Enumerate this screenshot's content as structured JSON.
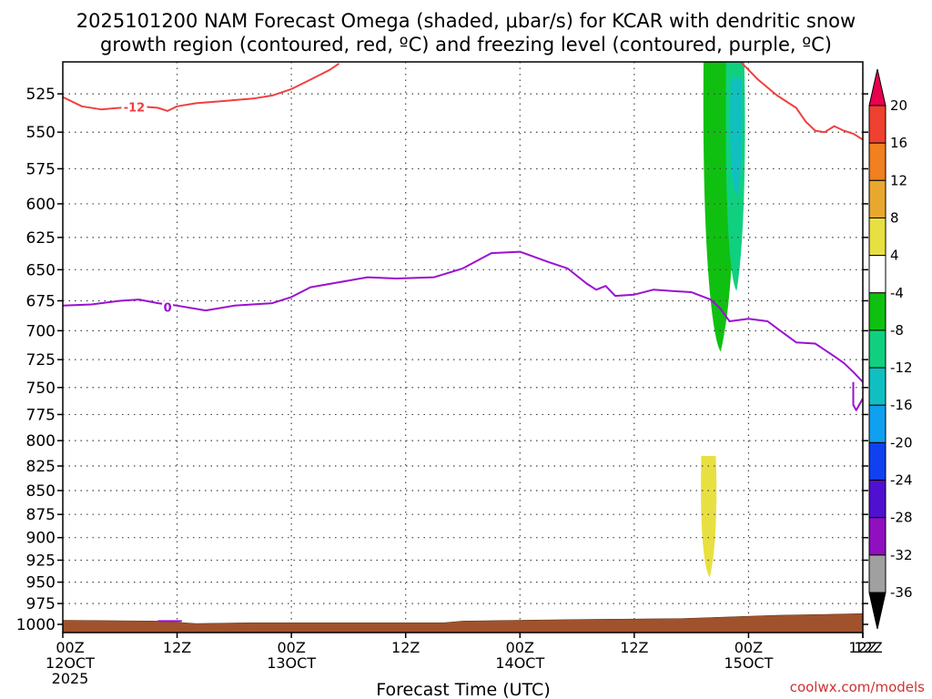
{
  "title": {
    "line1": "2025101200 NAM Forecast Omega (shaded, μbar/s) for KCAR with dendritic snow",
    "line2": "growth region (contoured, red, ºC) and freezing level (contoured, purple, ºC)"
  },
  "credit": "coolwx.com/models",
  "chart_data": {
    "type": "time-height",
    "xlabel": "Forecast Time (UTC)",
    "x_ticks": [
      {
        "hours": 0,
        "line1": "00Z",
        "line2": "12OCT",
        "line3": "2025"
      },
      {
        "hours": 12,
        "line1": "12Z",
        "line2": "",
        "line3": ""
      },
      {
        "hours": 24,
        "line1": "00Z",
        "line2": "13OCT",
        "line3": ""
      },
      {
        "hours": 36,
        "line1": "12Z",
        "line2": "",
        "line3": ""
      },
      {
        "hours": 48,
        "line1": "00Z",
        "line2": "14OCT",
        "line3": ""
      },
      {
        "hours": 60,
        "line1": "12Z",
        "line2": "",
        "line3": ""
      },
      {
        "hours": 72,
        "line1": "00Z",
        "line2": "15OCT",
        "line3": ""
      },
      {
        "hours": 84,
        "line1": "12Z",
        "line2": "",
        "line3": ""
      }
    ],
    "xlim_hours": [
      0,
      84
    ],
    "y_ticks": [
      525,
      550,
      575,
      600,
      625,
      650,
      675,
      700,
      725,
      750,
      775,
      800,
      825,
      850,
      875,
      900,
      925,
      950,
      975,
      1000
    ],
    "ylim_hpa": [
      505,
      1010
    ],
    "y_scale": "log-pressure",
    "grid": true,
    "colorbar": {
      "levels": [
        20,
        16,
        12,
        8,
        4,
        -4,
        -8,
        -12,
        -16,
        -20,
        -24,
        -28,
        -32,
        -36
      ],
      "colors": [
        "#e8004f",
        "#f04030",
        "#f08020",
        "#e8a830",
        "#e8e040",
        "#ffffff",
        "#10c010",
        "#10d080",
        "#10c0c0",
        "#10a0f0",
        "#1040f0",
        "#5010d0",
        "#9010c0",
        "#a0a0a0",
        "#000000"
      ]
    },
    "contours": [
      {
        "name": "-12",
        "color": "#f04040",
        "label": "-12",
        "label_at": [
          7.5,
          534
        ],
        "points": [
          [
            0,
            527
          ],
          [
            2,
            533
          ],
          [
            4,
            535
          ],
          [
            6,
            534
          ],
          [
            8,
            533
          ],
          [
            10,
            534
          ],
          [
            11,
            536
          ],
          [
            12,
            533
          ],
          [
            14,
            531
          ],
          [
            16,
            530
          ],
          [
            18,
            529
          ],
          [
            20,
            528
          ],
          [
            22,
            526
          ],
          [
            24,
            522
          ],
          [
            26,
            516
          ],
          [
            28,
            510
          ],
          [
            29,
            506
          ]
        ]
      },
      {
        "name": "-12-east",
        "color": "#f04040",
        "label": "",
        "label_at": null,
        "points": [
          [
            71,
            504
          ],
          [
            73,
            516
          ],
          [
            75,
            526
          ],
          [
            77,
            534
          ],
          [
            78,
            543
          ],
          [
            79,
            549
          ],
          [
            80,
            550
          ],
          [
            81,
            546
          ],
          [
            82,
            549
          ],
          [
            83,
            551
          ],
          [
            84,
            555
          ]
        ]
      },
      {
        "name": "0",
        "color": "#9b10d0",
        "label": "0",
        "label_at": [
          11,
          681
        ],
        "points": [
          [
            0,
            679
          ],
          [
            3,
            678
          ],
          [
            6,
            675
          ],
          [
            8,
            674
          ],
          [
            10,
            677
          ],
          [
            12,
            679
          ],
          [
            15,
            683
          ],
          [
            18,
            679
          ],
          [
            22,
            677
          ],
          [
            24,
            672
          ],
          [
            26,
            664
          ],
          [
            29,
            660
          ],
          [
            32,
            656
          ],
          [
            35,
            657
          ],
          [
            39,
            656
          ],
          [
            42,
            649
          ],
          [
            45,
            637
          ],
          [
            48,
            636
          ],
          [
            51,
            644
          ],
          [
            53,
            649
          ],
          [
            55,
            661
          ],
          [
            56,
            666
          ],
          [
            57,
            663
          ],
          [
            58,
            671
          ],
          [
            60,
            670
          ],
          [
            62,
            666
          ],
          [
            64,
            667
          ],
          [
            66,
            668
          ],
          [
            68,
            674
          ],
          [
            69,
            681
          ],
          [
            70,
            692
          ],
          [
            72,
            690
          ],
          [
            74,
            692
          ],
          [
            75,
            698
          ],
          [
            77,
            710
          ],
          [
            79,
            711
          ],
          [
            81,
            722
          ],
          [
            82,
            728
          ],
          [
            83,
            736
          ],
          [
            84,
            745
          ]
        ]
      },
      {
        "name": "0-tail",
        "color": "#9b10d0",
        "label": "",
        "label_at": null,
        "points": [
          [
            83,
            745
          ],
          [
            83,
            766
          ],
          [
            83.3,
            771
          ],
          [
            84,
            760
          ]
        ]
      },
      {
        "name": "0-near-surface",
        "color": "#9b10d0",
        "label": "",
        "label_at": null,
        "points": [
          [
            10,
            996
          ],
          [
            12.5,
            996
          ]
        ]
      }
    ],
    "shaded_regions": [
      {
        "name": "omega-green",
        "level": -8,
        "color": "#10c010",
        "center_hours": 68.9,
        "top_hpa": 505,
        "bottom_hpa": 718
      },
      {
        "name": "omega-teal",
        "level": -12,
        "color": "#10d080",
        "center_hours": 70.6,
        "top_hpa": 505,
        "bottom_hpa": 667
      },
      {
        "name": "omega-cyan",
        "level": -16,
        "color": "#10c0c0",
        "center_hours": 70.7,
        "top_hpa": 515,
        "bottom_hpa": 595
      },
      {
        "name": "omega-yellow",
        "level": 4,
        "color": "#e8e040",
        "center_hours": 67.8,
        "top_hpa": 815,
        "bottom_hpa": 945
      }
    ],
    "terrain": {
      "color": "#a0522d",
      "points": [
        [
          0,
          995
        ],
        [
          10,
          996
        ],
        [
          14,
          999
        ],
        [
          20,
          998
        ],
        [
          30,
          998
        ],
        [
          40,
          998
        ],
        [
          42,
          996
        ],
        [
          48,
          995
        ],
        [
          55,
          994
        ],
        [
          65,
          993
        ],
        [
          70,
          991
        ],
        [
          75,
          989
        ],
        [
          80,
          988
        ],
        [
          84,
          987
        ]
      ]
    }
  }
}
